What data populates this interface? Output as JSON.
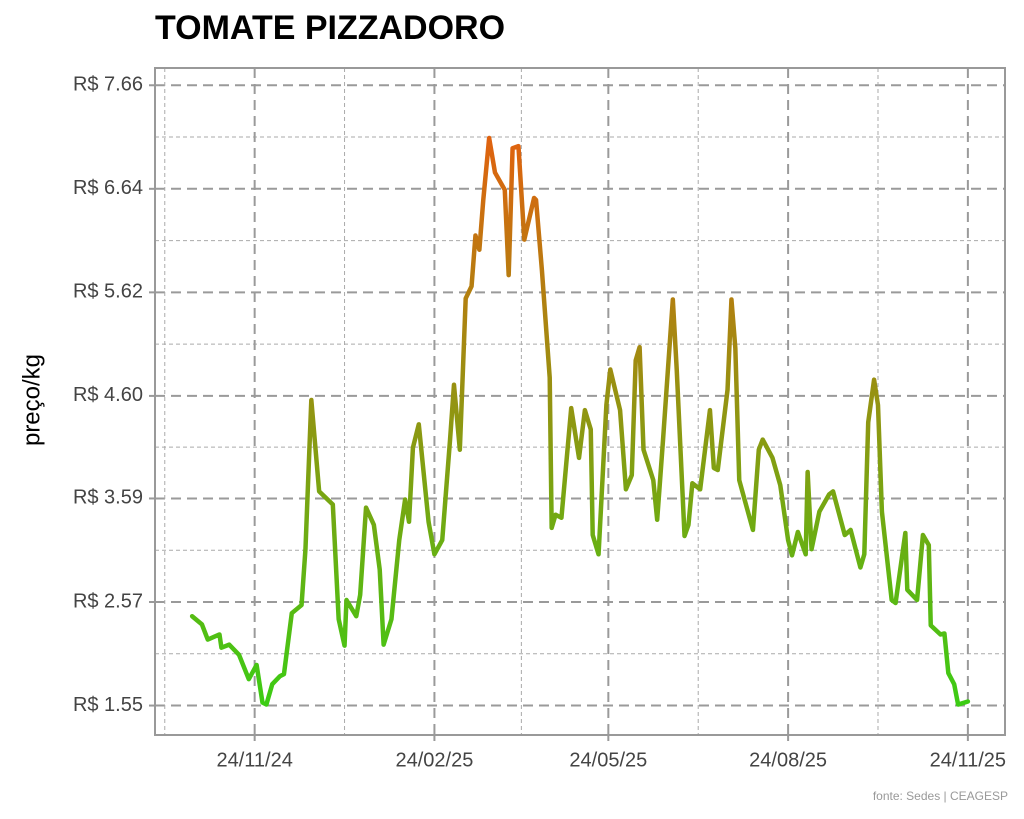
{
  "chart_data": {
    "type": "line",
    "title": "TOMATE PIZZADORO",
    "y_label": "preço/kg",
    "caption": "fonte: Sedes | CEAGESP",
    "x": [
      "2024-10-23",
      "2024-10-28",
      "2024-10-31",
      "2024-11-06",
      "2024-11-07",
      "2024-11-11",
      "2024-11-16",
      "2024-11-21",
      "2024-11-25",
      "2024-11-28",
      "2024-11-30",
      "2024-12-03",
      "2024-12-07",
      "2024-12-09",
      "2024-12-13",
      "2024-12-18",
      "2024-12-20",
      "2024-12-23",
      "2024-12-27",
      "2025-01-03",
      "2025-01-06",
      "2025-01-09",
      "2025-01-10",
      "2025-01-15",
      "2025-01-17",
      "2025-01-20",
      "2025-01-24",
      "2025-01-27",
      "2025-01-29",
      "2025-02-02",
      "2025-02-06",
      "2025-02-09",
      "2025-02-11",
      "2025-02-13",
      "2025-02-16",
      "2025-02-21",
      "2025-02-24",
      "2025-02-28",
      "2025-03-04",
      "2025-03-06",
      "2025-03-09",
      "2025-03-12",
      "2025-03-15",
      "2025-03-17",
      "2025-03-19",
      "2025-03-21",
      "2025-03-24",
      "2025-03-27",
      "2025-04-01",
      "2025-04-03",
      "2025-04-05",
      "2025-04-08",
      "2025-04-11",
      "2025-04-16",
      "2025-04-17",
      "2025-04-20",
      "2025-04-24",
      "2025-04-25",
      "2025-04-27",
      "2025-04-30",
      "2025-05-05",
      "2025-05-09",
      "2025-05-12",
      "2025-05-15",
      "2025-05-16",
      "2025-05-19",
      "2025-05-23",
      "2025-05-25",
      "2025-05-30",
      "2025-06-02",
      "2025-06-05",
      "2025-06-07",
      "2025-06-09",
      "2025-06-11",
      "2025-06-16",
      "2025-06-18",
      "2025-06-21",
      "2025-06-26",
      "2025-06-28",
      "2025-07-02",
      "2025-07-04",
      "2025-07-06",
      "2025-07-10",
      "2025-07-15",
      "2025-07-17",
      "2025-07-19",
      "2025-07-24",
      "2025-07-26",
      "2025-07-28",
      "2025-07-30",
      "2025-08-06",
      "2025-08-09",
      "2025-08-11",
      "2025-08-16",
      "2025-08-20",
      "2025-08-24",
      "2025-08-26",
      "2025-08-29",
      "2025-09-02",
      "2025-09-03",
      "2025-09-05",
      "2025-09-09",
      "2025-09-14",
      "2025-09-16",
      "2025-09-22",
      "2025-09-25",
      "2025-09-30",
      "2025-10-02",
      "2025-10-04",
      "2025-10-07",
      "2025-10-09",
      "2025-10-11",
      "2025-10-16",
      "2025-10-18",
      "2025-10-23",
      "2025-10-24",
      "2025-10-29",
      "2025-11-01",
      "2025-11-04",
      "2025-11-05",
      "2025-11-10",
      "2025-11-12",
      "2025-11-14",
      "2025-11-17",
      "2025-11-19",
      "2025-11-24"
    ],
    "values": [
      2.43,
      2.35,
      2.2,
      2.25,
      2.12,
      2.15,
      2.05,
      1.81,
      1.95,
      1.58,
      1.56,
      1.76,
      1.84,
      1.86,
      2.46,
      2.54,
      3.09,
      4.56,
      3.66,
      3.53,
      2.4,
      2.14,
      2.59,
      2.43,
      2.64,
      3.5,
      3.33,
      2.89,
      2.15,
      2.4,
      3.18,
      3.58,
      3.36,
      4.09,
      4.32,
      3.36,
      3.04,
      3.18,
      4.17,
      4.71,
      4.07,
      5.56,
      5.68,
      6.18,
      6.04,
      6.53,
      7.14,
      6.8,
      6.63,
      5.79,
      7.04,
      7.06,
      6.14,
      6.55,
      6.53,
      5.84,
      4.78,
      3.3,
      3.43,
      3.4,
      4.48,
      3.99,
      4.46,
      4.27,
      3.23,
      3.04,
      4.51,
      4.86,
      4.46,
      3.68,
      3.82,
      4.95,
      5.08,
      4.07,
      3.77,
      3.38,
      4.17,
      5.55,
      4.86,
      3.22,
      3.33,
      3.74,
      3.68,
      4.46,
      3.89,
      3.87,
      4.66,
      5.55,
      5.07,
      3.77,
      3.28,
      4.07,
      4.17,
      3.99,
      3.72,
      3.18,
      3.03,
      3.26,
      3.04,
      3.85,
      3.09,
      3.46,
      3.63,
      3.66,
      3.23,
      3.28,
      2.91,
      3.04,
      4.34,
      4.76,
      4.51,
      3.46,
      2.59,
      2.56,
      3.25,
      2.69,
      2.59,
      3.23,
      3.13,
      2.34,
      2.25,
      2.26,
      1.87,
      1.76,
      1.56,
      1.59
    ],
    "color_low": "#3ccc14",
    "color_high": "#e0620f",
    "xlim": [
      "2024-10-04",
      "2025-12-13"
    ],
    "xticks": [
      {
        "value": "2024-11-24",
        "label": "24/11/24"
      },
      {
        "value": "2025-02-24",
        "label": "24/02/25"
      },
      {
        "value": "2025-05-24",
        "label": "24/05/25"
      },
      {
        "value": "2025-08-24",
        "label": "24/08/25"
      },
      {
        "value": "2025-11-24",
        "label": "24/11/25"
      }
    ],
    "ylim": [
      1.26,
      7.83
    ],
    "yticks": [
      {
        "value": 1.55,
        "label": "R$ 1.55"
      },
      {
        "value": 2.57,
        "label": "R$ 2.57"
      },
      {
        "value": 3.59,
        "label": "R$ 3.59"
      },
      {
        "value": 4.6,
        "label": "R$ 4.60"
      },
      {
        "value": 5.62,
        "label": "R$ 5.62"
      },
      {
        "value": 6.64,
        "label": "R$ 6.64"
      },
      {
        "value": 7.66,
        "label": "R$ 7.66"
      }
    ],
    "grid": true
  }
}
